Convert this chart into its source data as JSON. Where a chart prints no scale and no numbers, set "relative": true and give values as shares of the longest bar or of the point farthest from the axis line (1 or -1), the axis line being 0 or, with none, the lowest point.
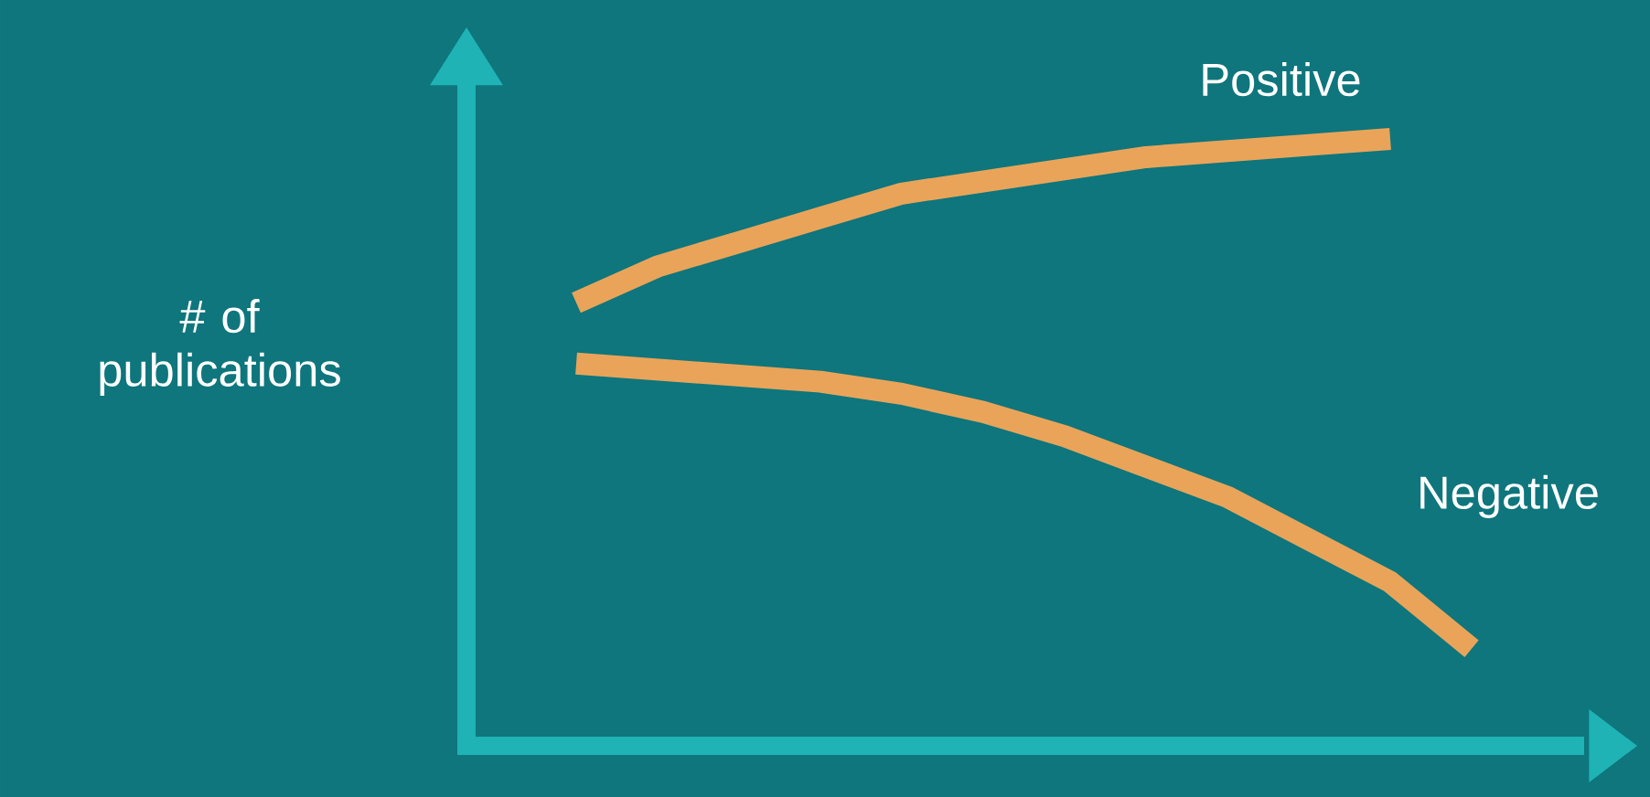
{
  "chart_data": {
    "type": "line",
    "relative": true,
    "ylabel": "# of publications",
    "categories": [
      null,
      null,
      null,
      null,
      null,
      null,
      null,
      null,
      null,
      null,
      null,
      null
    ],
    "series": [
      {
        "name": "Positive",
        "color": "#e9a45a",
        "values": [
          0.73,
          0.79,
          0.83,
          0.87,
          0.91,
          0.93,
          0.95,
          0.97,
          0.98,
          0.99,
          1.0,
          null
        ]
      },
      {
        "name": "Negative",
        "color": "#e9a45a",
        "values": [
          0.63,
          0.62,
          0.61,
          0.6,
          0.58,
          0.55,
          0.51,
          0.46,
          0.41,
          0.34,
          0.27,
          0.16
        ]
      }
    ]
  }
}
